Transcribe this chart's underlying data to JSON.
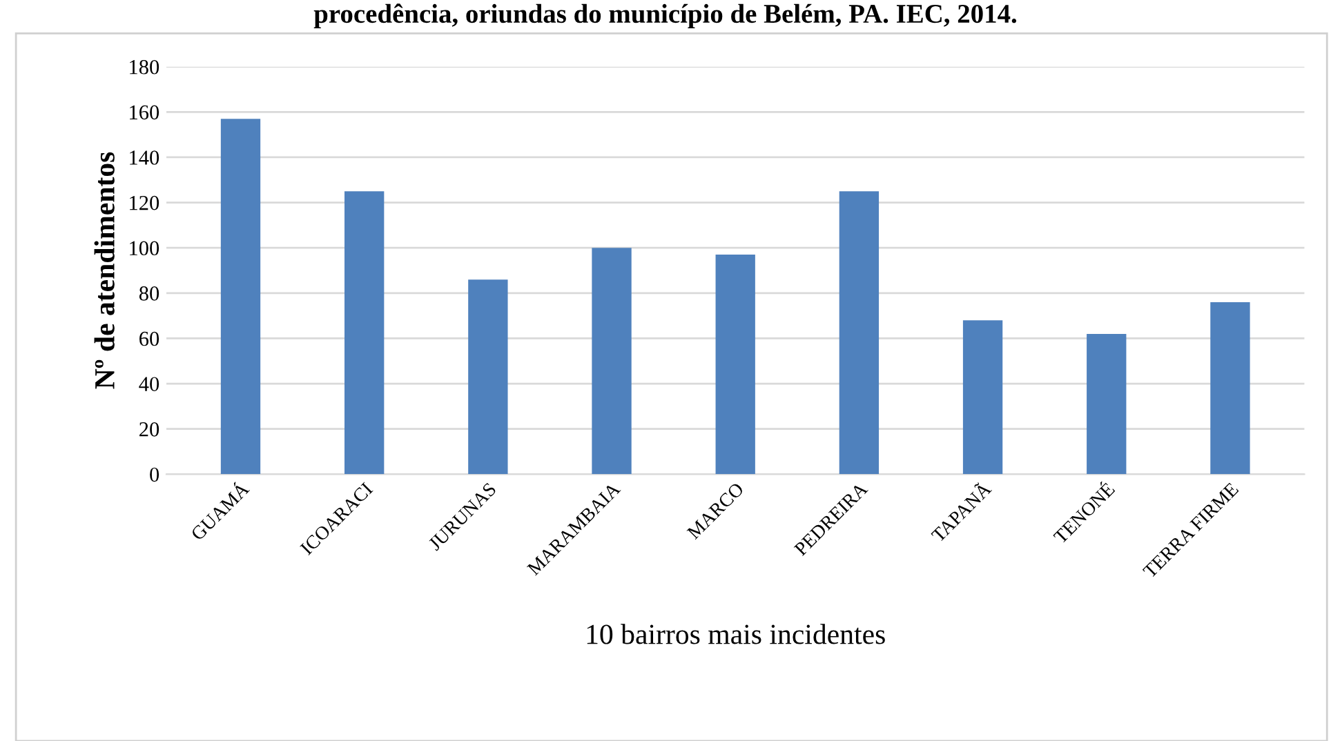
{
  "chart_data": {
    "type": "bar",
    "title": "procedência, oriundas do município de Belém, PA. IEC, 2014.",
    "xlabel": "10 bairros mais incidentes",
    "ylabel": "Nº de atendimentos",
    "categories": [
      "GUAMÁ",
      "ICOARACI",
      "JURUNAS",
      "MARAMBAIA",
      "MARCO",
      "PEDREIRA",
      "TAPANÃ",
      "TENONÉ",
      "TERRA FIRME"
    ],
    "values": [
      157,
      125,
      86,
      100,
      97,
      125,
      68,
      62,
      76
    ],
    "color": "#4f81bd",
    "ylim": [
      0,
      180
    ],
    "yticks": [
      0,
      20,
      40,
      60,
      80,
      100,
      120,
      140,
      160,
      180
    ],
    "grid": "y",
    "legend": false
  }
}
